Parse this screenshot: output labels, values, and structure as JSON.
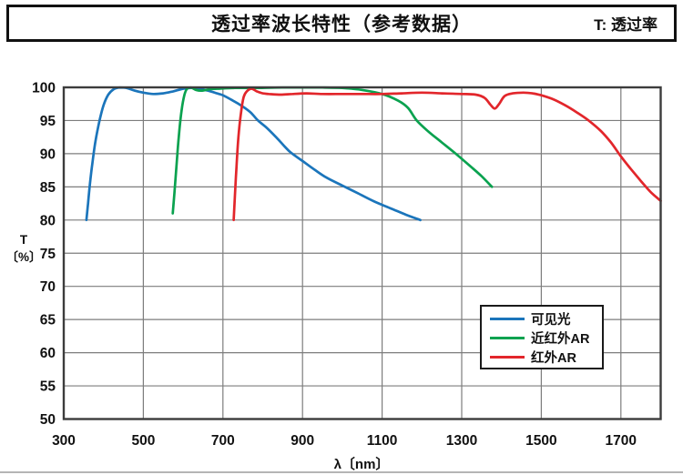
{
  "header": {
    "title": "透过率波长特性（参考数据）",
    "right_label": "T: 透过率"
  },
  "chart_data": {
    "type": "line",
    "title": "透过率波长特性（参考数据）",
    "xlabel": "λ〔nm〕",
    "ylabel": "T〔%〕",
    "ylabel_lines": [
      "T",
      "〔%〕"
    ],
    "xlim": [
      300,
      1800
    ],
    "ylim": [
      50,
      100
    ],
    "x_ticks": [
      300,
      500,
      700,
      900,
      1100,
      1300,
      1500,
      1700
    ],
    "y_ticks": [
      50,
      55,
      60,
      65,
      70,
      75,
      80,
      85,
      90,
      95,
      100
    ],
    "grid": true,
    "legend_position": "lower right",
    "colors": {
      "grid": "#7d7d7d",
      "axis": "#3c3c3c",
      "text": "#111111"
    },
    "series": [
      {
        "name": "可见光",
        "color": "#1b75bb",
        "points": [
          [
            357,
            80
          ],
          [
            361,
            82.5
          ],
          [
            366,
            85.5
          ],
          [
            372,
            88.6
          ],
          [
            380,
            92
          ],
          [
            390,
            95
          ],
          [
            400,
            97.3
          ],
          [
            412,
            98.9
          ],
          [
            425,
            99.7
          ],
          [
            440,
            100
          ],
          [
            458,
            99.9
          ],
          [
            478,
            99.5
          ],
          [
            500,
            99.2
          ],
          [
            525,
            99
          ],
          [
            550,
            99.1
          ],
          [
            575,
            99.4
          ],
          [
            600,
            99.8
          ],
          [
            620,
            99.9
          ],
          [
            640,
            99.8
          ],
          [
            662,
            99.5
          ],
          [
            685,
            99.1
          ],
          [
            700,
            98.8
          ],
          [
            725,
            98
          ],
          [
            750,
            97.1
          ],
          [
            770,
            96.2
          ],
          [
            788,
            95
          ],
          [
            810,
            93.9
          ],
          [
            835,
            92.4
          ],
          [
            855,
            91.1
          ],
          [
            870,
            90.2
          ],
          [
            900,
            88.9
          ],
          [
            930,
            87.6
          ],
          [
            960,
            86.4
          ],
          [
            1000,
            85.2
          ],
          [
            1040,
            84
          ],
          [
            1080,
            82.8
          ],
          [
            1120,
            81.8
          ],
          [
            1160,
            80.8
          ],
          [
            1196,
            80
          ]
        ]
      },
      {
        "name": "近红外AR",
        "color": "#0aa24f",
        "points": [
          [
            574,
            81
          ],
          [
            578,
            84
          ],
          [
            583,
            88
          ],
          [
            589,
            92.5
          ],
          [
            596,
            96.5
          ],
          [
            603,
            98.8
          ],
          [
            610,
            99.8
          ],
          [
            620,
            100
          ],
          [
            633,
            99.6
          ],
          [
            648,
            99.5
          ],
          [
            665,
            99.7
          ],
          [
            690,
            99.8
          ],
          [
            730,
            99.9
          ],
          [
            780,
            99.9
          ],
          [
            850,
            100
          ],
          [
            950,
            100
          ],
          [
            1000,
            99.9
          ],
          [
            1050,
            99.6
          ],
          [
            1100,
            99
          ],
          [
            1140,
            98
          ],
          [
            1165,
            96.9
          ],
          [
            1187,
            95
          ],
          [
            1215,
            93.4
          ],
          [
            1250,
            91.7
          ],
          [
            1285,
            90
          ],
          [
            1320,
            88.2
          ],
          [
            1350,
            86.6
          ],
          [
            1376,
            85
          ]
        ]
      },
      {
        "name": "红外AR",
        "color": "#e2262b",
        "points": [
          [
            727,
            80
          ],
          [
            730,
            83.5
          ],
          [
            734,
            88
          ],
          [
            739,
            92.5
          ],
          [
            745,
            96
          ],
          [
            752,
            98.5
          ],
          [
            760,
            99.4
          ],
          [
            772,
            99.8
          ],
          [
            785,
            99.4
          ],
          [
            800,
            99.1
          ],
          [
            815,
            99
          ],
          [
            845,
            98.9
          ],
          [
            875,
            99
          ],
          [
            910,
            99.1
          ],
          [
            950,
            99
          ],
          [
            1000,
            99
          ],
          [
            1050,
            99
          ],
          [
            1100,
            99
          ],
          [
            1150,
            99.1
          ],
          [
            1200,
            99.2
          ],
          [
            1250,
            99.1
          ],
          [
            1300,
            99
          ],
          [
            1335,
            98.9
          ],
          [
            1358,
            98.4
          ],
          [
            1372,
            97.4
          ],
          [
            1383,
            96.8
          ],
          [
            1394,
            97.5
          ],
          [
            1408,
            98.7
          ],
          [
            1428,
            99.1
          ],
          [
            1455,
            99.2
          ],
          [
            1478,
            99.1
          ],
          [
            1500,
            98.8
          ],
          [
            1530,
            98.2
          ],
          [
            1560,
            97.3
          ],
          [
            1590,
            96.2
          ],
          [
            1619,
            95
          ],
          [
            1650,
            93.4
          ],
          [
            1675,
            91.7
          ],
          [
            1700,
            89.6
          ],
          [
            1725,
            87.7
          ],
          [
            1750,
            85.9
          ],
          [
            1775,
            84.2
          ],
          [
            1800,
            82.9
          ]
        ]
      }
    ]
  }
}
